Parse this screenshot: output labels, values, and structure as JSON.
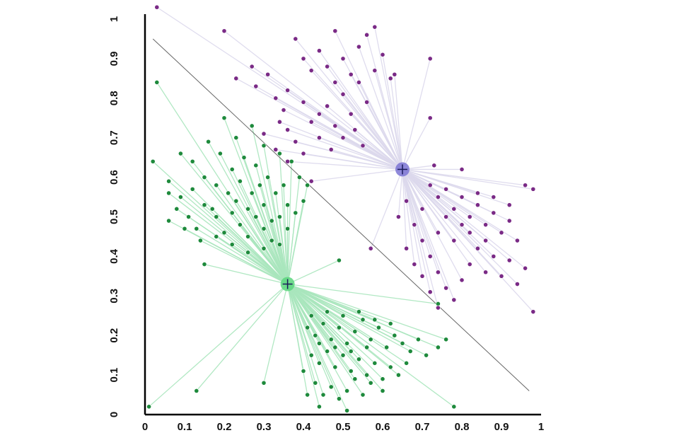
{
  "chart_data": {
    "type": "scatter",
    "title": "",
    "xlabel": "",
    "ylabel": "",
    "xlim": [
      0,
      1
    ],
    "ylim": [
      0,
      1
    ],
    "x_ticks": [
      "0",
      "0.1",
      "0.2",
      "0.3",
      "0.4",
      "0.5",
      "0.6",
      "0.7",
      "0.8",
      "0.9",
      "1"
    ],
    "y_ticks": [
      "0",
      "0.1",
      "0.2",
      "0.3",
      "0.4",
      "0.5",
      "0.6",
      "0.7",
      "0.8",
      "0.9",
      "1"
    ],
    "grid": false,
    "legend": "none",
    "colors": {
      "green_points": "#1e8a3c",
      "green_spokes": "#a8e6bd",
      "green_centroid": "#5cd67e",
      "purple_points": "#7a2a86",
      "purple_spokes": "#dcd8ec",
      "purple_centroid": "#7b74d4",
      "boundary": "#666666"
    },
    "boundary_line": [
      [
        0.02,
        0.95
      ],
      [
        0.97,
        0.06
      ]
    ],
    "series": [
      {
        "color_key": "green",
        "centroid": [
          0.36,
          0.33
        ],
        "points": [
          [
            0.03,
            0.84
          ],
          [
            0.02,
            0.64
          ],
          [
            0.06,
            0.56
          ],
          [
            0.08,
            0.52
          ],
          [
            0.06,
            0.49
          ],
          [
            0.09,
            0.55
          ],
          [
            0.11,
            0.5
          ],
          [
            0.13,
            0.47
          ],
          [
            0.15,
            0.53
          ],
          [
            0.18,
            0.5
          ],
          [
            0.2,
            0.46
          ],
          [
            0.22,
            0.51
          ],
          [
            0.24,
            0.48
          ],
          [
            0.26,
            0.45
          ],
          [
            0.28,
            0.5
          ],
          [
            0.3,
            0.47
          ],
          [
            0.32,
            0.44
          ],
          [
            0.34,
            0.5
          ],
          [
            0.36,
            0.47
          ],
          [
            0.34,
            0.43
          ],
          [
            0.3,
            0.42
          ],
          [
            0.26,
            0.41
          ],
          [
            0.22,
            0.43
          ],
          [
            0.18,
            0.45
          ],
          [
            0.14,
            0.44
          ],
          [
            0.12,
            0.57
          ],
          [
            0.15,
            0.6
          ],
          [
            0.18,
            0.58
          ],
          [
            0.21,
            0.56
          ],
          [
            0.24,
            0.59
          ],
          [
            0.27,
            0.56
          ],
          [
            0.3,
            0.53
          ],
          [
            0.33,
            0.56
          ],
          [
            0.36,
            0.53
          ],
          [
            0.38,
            0.51
          ],
          [
            0.35,
            0.58
          ],
          [
            0.31,
            0.6
          ],
          [
            0.28,
            0.63
          ],
          [
            0.25,
            0.65
          ],
          [
            0.22,
            0.62
          ],
          [
            0.19,
            0.66
          ],
          [
            0.16,
            0.69
          ],
          [
            0.12,
            0.64
          ],
          [
            0.09,
            0.66
          ],
          [
            0.06,
            0.59
          ],
          [
            0.2,
            0.75
          ],
          [
            0.23,
            0.7
          ],
          [
            0.27,
            0.73
          ],
          [
            0.3,
            0.68
          ],
          [
            0.34,
            0.66
          ],
          [
            0.37,
            0.64
          ],
          [
            0.39,
            0.6
          ],
          [
            0.41,
            0.58
          ],
          [
            0.17,
            0.52
          ],
          [
            0.23,
            0.54
          ],
          [
            0.29,
            0.58
          ],
          [
            0.32,
            0.49
          ],
          [
            0.26,
            0.52
          ],
          [
            0.1,
            0.47
          ],
          [
            0.4,
            0.54
          ],
          [
            0.15,
            0.38
          ],
          [
            0.49,
            0.39
          ],
          [
            0.74,
            0.28
          ],
          [
            0.41,
            0.22
          ],
          [
            0.43,
            0.2
          ],
          [
            0.45,
            0.23
          ],
          [
            0.47,
            0.19
          ],
          [
            0.49,
            0.22
          ],
          [
            0.51,
            0.18
          ],
          [
            0.53,
            0.21
          ],
          [
            0.55,
            0.24
          ],
          [
            0.57,
            0.19
          ],
          [
            0.59,
            0.22
          ],
          [
            0.61,
            0.17
          ],
          [
            0.63,
            0.2
          ],
          [
            0.65,
            0.18
          ],
          [
            0.67,
            0.16
          ],
          [
            0.69,
            0.19
          ],
          [
            0.71,
            0.15
          ],
          [
            0.74,
            0.17
          ],
          [
            0.76,
            0.19
          ],
          [
            0.42,
            0.15
          ],
          [
            0.44,
            0.13
          ],
          [
            0.46,
            0.16
          ],
          [
            0.48,
            0.12
          ],
          [
            0.5,
            0.15
          ],
          [
            0.52,
            0.11
          ],
          [
            0.54,
            0.14
          ],
          [
            0.56,
            0.1
          ],
          [
            0.58,
            0.13
          ],
          [
            0.6,
            0.09
          ],
          [
            0.62,
            0.12
          ],
          [
            0.64,
            0.1
          ],
          [
            0.66,
            0.13
          ],
          [
            0.43,
            0.08
          ],
          [
            0.45,
            0.05
          ],
          [
            0.47,
            0.07
          ],
          [
            0.49,
            0.04
          ],
          [
            0.51,
            0.06
          ],
          [
            0.53,
            0.09
          ],
          [
            0.55,
            0.05
          ],
          [
            0.57,
            0.08
          ],
          [
            0.6,
            0.06
          ],
          [
            0.42,
            0.25
          ],
          [
            0.46,
            0.26
          ],
          [
            0.5,
            0.25
          ],
          [
            0.54,
            0.26
          ],
          [
            0.58,
            0.24
          ],
          [
            0.62,
            0.23
          ],
          [
            0.44,
            0.18
          ],
          [
            0.48,
            0.17
          ],
          [
            0.52,
            0.16
          ],
          [
            0.56,
            0.17
          ],
          [
            0.4,
            0.11
          ],
          [
            0.41,
            0.05
          ],
          [
            0.44,
            0.02
          ],
          [
            0.51,
            0.01
          ],
          [
            0.78,
            0.02
          ],
          [
            0.3,
            0.08
          ],
          [
            0.13,
            0.06
          ],
          [
            0.01,
            0.02
          ]
        ]
      },
      {
        "color_key": "purple",
        "centroid": [
          0.65,
          0.62
        ],
        "points": [
          [
            0.03,
            1.03
          ],
          [
            0.2,
            0.97
          ],
          [
            0.23,
            0.85
          ],
          [
            0.27,
            0.88
          ],
          [
            0.28,
            0.83
          ],
          [
            0.31,
            0.86
          ],
          [
            0.33,
            0.8
          ],
          [
            0.35,
            0.77
          ],
          [
            0.36,
            0.72
          ],
          [
            0.38,
            0.69
          ],
          [
            0.4,
            0.66
          ],
          [
            0.42,
            0.74
          ],
          [
            0.44,
            0.7
          ],
          [
            0.46,
            0.78
          ],
          [
            0.48,
            0.73
          ],
          [
            0.5,
            0.81
          ],
          [
            0.52,
            0.76
          ],
          [
            0.54,
            0.84
          ],
          [
            0.56,
            0.79
          ],
          [
            0.58,
            0.87
          ],
          [
            0.38,
            0.95
          ],
          [
            0.4,
            0.9
          ],
          [
            0.42,
            0.87
          ],
          [
            0.44,
            0.92
          ],
          [
            0.46,
            0.88
          ],
          [
            0.48,
            0.84
          ],
          [
            0.5,
            0.9
          ],
          [
            0.52,
            0.86
          ],
          [
            0.54,
            0.93
          ],
          [
            0.56,
            0.96
          ],
          [
            0.58,
            0.98
          ],
          [
            0.6,
            0.91
          ],
          [
            0.62,
            0.85
          ],
          [
            0.48,
            0.97
          ],
          [
            0.36,
            0.82
          ],
          [
            0.4,
            0.79
          ],
          [
            0.44,
            0.76
          ],
          [
            0.47,
            0.67
          ],
          [
            0.5,
            0.7
          ],
          [
            0.53,
            0.72
          ],
          [
            0.55,
            0.68
          ],
          [
            0.34,
            0.74
          ],
          [
            0.3,
            0.71
          ],
          [
            0.33,
            0.67
          ],
          [
            0.36,
            0.64
          ],
          [
            0.72,
            0.9
          ],
          [
            0.72,
            0.75
          ],
          [
            0.63,
            0.86
          ],
          [
            0.73,
            0.63
          ],
          [
            0.72,
            0.58
          ],
          [
            0.74,
            0.55
          ],
          [
            0.76,
            0.57
          ],
          [
            0.78,
            0.52
          ],
          [
            0.8,
            0.55
          ],
          [
            0.82,
            0.5
          ],
          [
            0.84,
            0.53
          ],
          [
            0.86,
            0.48
          ],
          [
            0.88,
            0.51
          ],
          [
            0.9,
            0.46
          ],
          [
            0.92,
            0.49
          ],
          [
            0.94,
            0.44
          ],
          [
            0.96,
            0.58
          ],
          [
            0.98,
            0.57
          ],
          [
            0.7,
            0.52
          ],
          [
            0.68,
            0.48
          ],
          [
            0.7,
            0.44
          ],
          [
            0.72,
            0.4
          ],
          [
            0.74,
            0.36
          ],
          [
            0.76,
            0.32
          ],
          [
            0.78,
            0.29
          ],
          [
            0.8,
            0.34
          ],
          [
            0.82,
            0.38
          ],
          [
            0.84,
            0.42
          ],
          [
            0.86,
            0.36
          ],
          [
            0.88,
            0.4
          ],
          [
            0.9,
            0.35
          ],
          [
            0.92,
            0.39
          ],
          [
            0.94,
            0.33
          ],
          [
            0.96,
            0.37
          ],
          [
            0.74,
            0.46
          ],
          [
            0.78,
            0.44
          ],
          [
            0.82,
            0.46
          ],
          [
            0.86,
            0.44
          ],
          [
            0.76,
            0.5
          ],
          [
            0.8,
            0.48
          ],
          [
            0.84,
            0.56
          ],
          [
            0.88,
            0.55
          ],
          [
            0.92,
            0.53
          ],
          [
            0.66,
            0.54
          ],
          [
            0.64,
            0.5
          ],
          [
            0.66,
            0.42
          ],
          [
            0.68,
            0.38
          ],
          [
            0.7,
            0.35
          ],
          [
            0.72,
            0.31
          ],
          [
            0.74,
            0.27
          ],
          [
            0.98,
            0.26
          ],
          [
            0.57,
            0.42
          ],
          [
            0.42,
            0.59
          ],
          [
            0.8,
            0.62
          ]
        ]
      }
    ]
  }
}
